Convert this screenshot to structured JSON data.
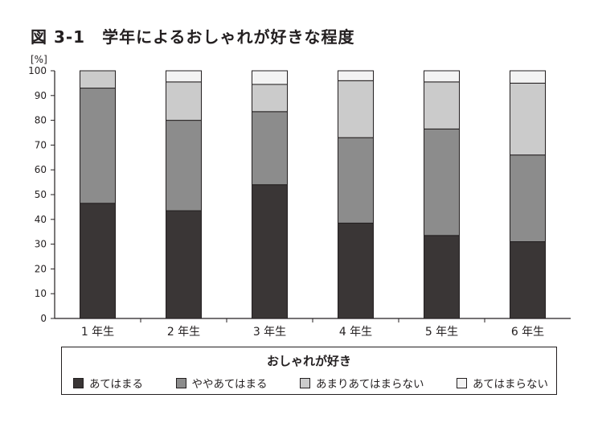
{
  "chart_data": {
    "type": "bar",
    "stacked": true,
    "title": "図 3-1　学年によるおしゃれが好きな程度",
    "y_unit": "[%]",
    "ylim": [
      0,
      100
    ],
    "yticks": [
      0,
      10,
      20,
      30,
      40,
      50,
      60,
      70,
      80,
      90,
      100
    ],
    "categories": [
      "1 年生",
      "2 年生",
      "3 年生",
      "4 年生",
      "5 年生",
      "6 年生"
    ],
    "series": [
      {
        "name": "あてはまる",
        "color": "#3a3636",
        "values": [
          46.5,
          43.5,
          54,
          38.5,
          33.5,
          31
        ]
      },
      {
        "name": "ややあてはまる",
        "color": "#8c8c8c",
        "values": [
          46.5,
          36.5,
          29.5,
          34.5,
          43,
          35
        ]
      },
      {
        "name": "あまりあてはまらない",
        "color": "#cbcbcb",
        "values": [
          7,
          15.5,
          11,
          23,
          19,
          29
        ]
      },
      {
        "name": "あてはまらない",
        "color": "#f3f3f3",
        "values": [
          0,
          4.5,
          5.5,
          4,
          4.5,
          5
        ]
      }
    ],
    "legend_title": "おしゃれが好き",
    "legend_position": "bottom",
    "grid": false
  }
}
